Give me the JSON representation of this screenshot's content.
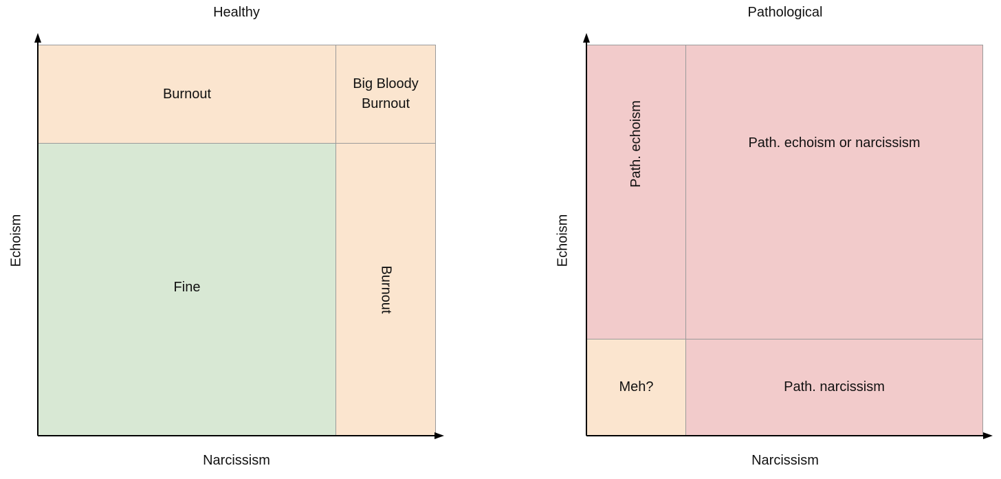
{
  "panels": [
    {
      "title": "Healthy",
      "x_axis_label": "Narcissism",
      "y_axis_label": "Echoism",
      "cells": {
        "top_left": "Burnout",
        "top_right": "Big Bloody Burnout",
        "bottom_left": "Fine",
        "bottom_right": "Burnout"
      }
    },
    {
      "title": "Pathological",
      "x_axis_label": "Narcissism",
      "y_axis_label": "Echoism",
      "cells": {
        "top_left": "Path. echoism",
        "top_right": "Path. echoism or narcissism",
        "bottom_left": "Meh?",
        "bottom_right": "Path. narcissism"
      }
    }
  ],
  "colors": {
    "burnout_peach": "#fbe5cf",
    "fine_green": "#d8e8d4",
    "pathological_pink": "#f2cbcb",
    "divider_gray": "#9a9a9a",
    "axis_black": "#000000"
  }
}
